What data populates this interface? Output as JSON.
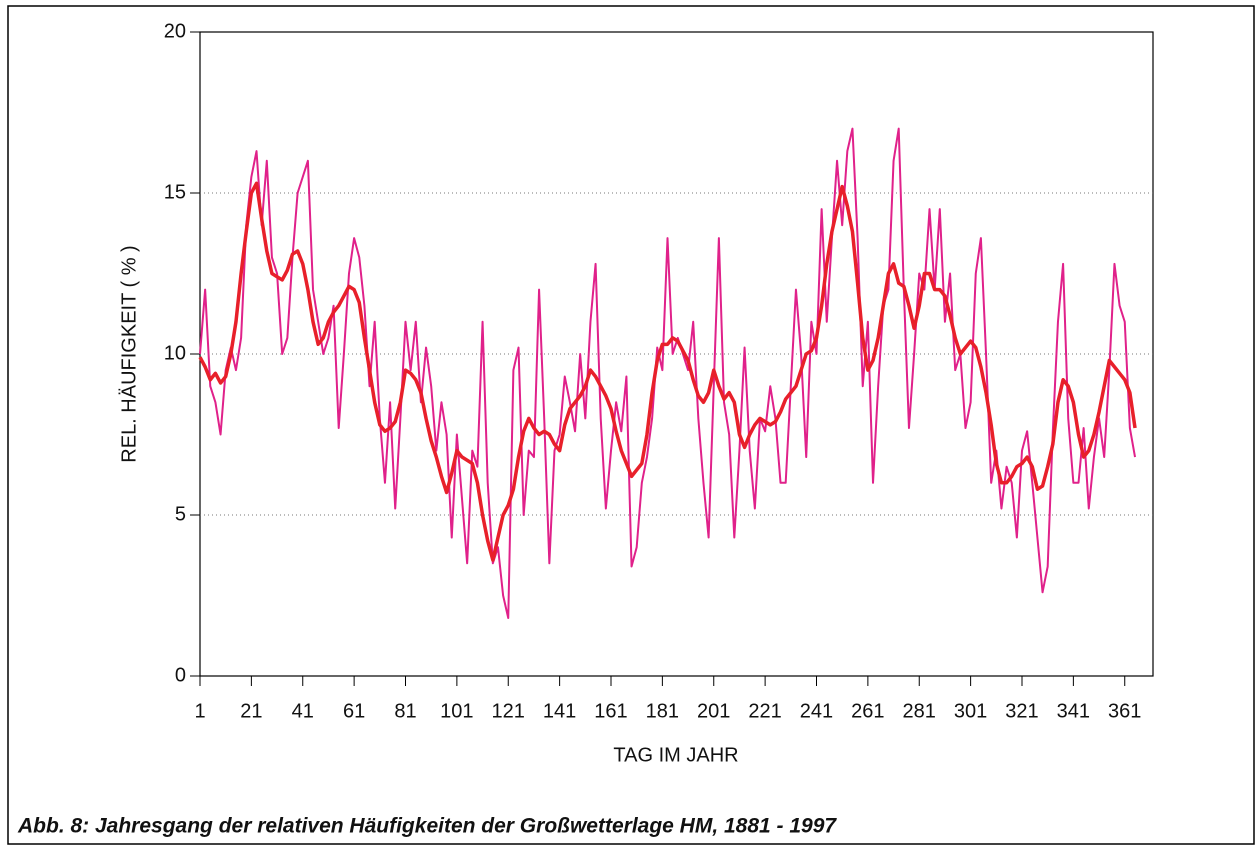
{
  "chart_data": {
    "type": "line",
    "title": "Abb. 8: Jahresgang der relativen Häufigkeiten der Großwetterlage HM, 1881 - 1997",
    "xlabel": "TAG IM JAHR",
    "ylabel": "REL. HÄUFIGKEIT ( % )",
    "x": [
      1,
      3,
      5,
      7,
      9,
      11,
      13,
      15,
      17,
      19,
      21,
      23,
      25,
      27,
      29,
      31,
      33,
      35,
      37,
      39,
      41,
      43,
      45,
      47,
      49,
      51,
      53,
      55,
      57,
      59,
      61,
      63,
      65,
      67,
      69,
      71,
      73,
      75,
      77,
      79,
      81,
      83,
      85,
      87,
      89,
      91,
      93,
      95,
      97,
      99,
      101,
      103,
      105,
      107,
      109,
      111,
      113,
      115,
      117,
      119,
      121,
      123,
      125,
      127,
      129,
      131,
      133,
      135,
      137,
      139,
      141,
      143,
      145,
      147,
      149,
      151,
      153,
      155,
      157,
      159,
      161,
      163,
      165,
      167,
      169,
      171,
      173,
      175,
      177,
      179,
      181,
      183,
      185,
      187,
      189,
      191,
      193,
      195,
      197,
      199,
      201,
      203,
      205,
      207,
      209,
      211,
      213,
      215,
      217,
      219,
      221,
      223,
      225,
      227,
      229,
      231,
      233,
      235,
      237,
      239,
      241,
      243,
      245,
      247,
      249,
      251,
      253,
      255,
      257,
      259,
      261,
      263,
      265,
      267,
      269,
      271,
      273,
      275,
      277,
      279,
      281,
      283,
      285,
      287,
      289,
      291,
      293,
      295,
      297,
      299,
      301,
      303,
      305,
      307,
      309,
      311,
      313,
      315,
      317,
      319,
      321,
      323,
      325,
      327,
      329,
      331,
      333,
      335,
      337,
      339,
      341,
      343,
      345,
      347,
      349,
      351,
      353,
      355,
      357,
      359,
      361,
      363,
      365
    ],
    "series": [
      {
        "color": "#e0218a",
        "width": 2,
        "values": [
          10,
          12,
          9,
          8.5,
          7.5,
          9.5,
          10.2,
          9.5,
          10.5,
          14,
          15.5,
          16.3,
          14,
          16,
          13,
          12.5,
          10,
          10.5,
          13,
          15,
          15.5,
          16,
          12,
          11,
          10,
          10.5,
          11.5,
          7.7,
          10,
          12.5,
          13.6,
          13,
          11.5,
          9,
          11,
          8,
          6,
          8.5,
          5.2,
          8,
          11,
          9.5,
          11,
          8.5,
          10.2,
          9,
          7,
          8.5,
          7.5,
          4.3,
          7.5,
          5.5,
          3.5,
          7,
          6.5,
          11,
          6,
          3.5,
          4,
          2.5,
          1.8,
          9.5,
          10.2,
          5,
          7,
          6.8,
          12,
          8,
          3.5,
          7,
          7.5,
          9.3,
          8.5,
          7.6,
          10,
          8,
          11,
          12.8,
          8,
          5.2,
          7,
          8.5,
          7.6,
          9.3,
          3.4,
          4,
          6,
          6.8,
          8,
          10.2,
          9.5,
          13.6,
          10,
          10.5,
          10,
          9.5,
          11,
          8,
          6,
          4.3,
          9,
          13.6,
          8.5,
          7.5,
          4.3,
          7,
          10.2,
          7,
          5.2,
          8,
          7.6,
          9,
          8,
          6,
          6,
          9,
          12,
          10,
          6.8,
          11,
          10,
          14.5,
          11,
          13.6,
          16,
          14,
          16.3,
          17,
          13.6,
          9,
          11,
          6,
          9,
          11.5,
          12,
          16,
          17,
          12,
          7.7,
          10,
          12.5,
          12,
          14.5,
          12,
          14.5,
          11,
          12.5,
          9.5,
          10,
          7.7,
          8.5,
          12.5,
          13.6,
          10,
          6,
          7,
          5.2,
          6.5,
          6,
          4.3,
          7,
          7.6,
          6,
          4.3,
          2.6,
          3.4,
          7.6,
          11,
          12.8,
          8,
          6,
          6,
          7.7,
          5.2,
          6.8,
          8,
          6.8,
          9.5,
          12.8,
          11.5,
          11,
          7.7,
          6.8
        ]
      },
      {
        "color": "#e8202a",
        "width": 3.5,
        "values": [
          9.9,
          9.6,
          9.2,
          9.4,
          9.1,
          9.3,
          10,
          11,
          12.5,
          13.8,
          15,
          15.3,
          14.2,
          13.2,
          12.5,
          12.4,
          12.3,
          12.6,
          13.1,
          13.2,
          12.8,
          12,
          11,
          10.3,
          10.5,
          11,
          11.3,
          11.5,
          11.8,
          12.1,
          12,
          11.6,
          10.5,
          9.5,
          8.5,
          7.8,
          7.6,
          7.7,
          7.9,
          8.5,
          9.5,
          9.4,
          9.2,
          8.8,
          8,
          7.3,
          6.8,
          6.2,
          5.7,
          6.3,
          7,
          6.8,
          6.7,
          6.6,
          6,
          5,
          4.2,
          3.6,
          4.3,
          5,
          5.3,
          5.8,
          6.8,
          7.6,
          8,
          7.7,
          7.5,
          7.6,
          7.5,
          7.2,
          7,
          7.8,
          8.3,
          8.5,
          8.7,
          9,
          9.5,
          9.3,
          9,
          8.7,
          8.3,
          7.6,
          7,
          6.6,
          6.2,
          6.4,
          6.6,
          7.5,
          8.8,
          9.8,
          10.3,
          10.3,
          10.5,
          10.4,
          10.1,
          9.8,
          9.2,
          8.7,
          8.5,
          8.8,
          9.5,
          9,
          8.6,
          8.8,
          8.5,
          7.5,
          7.1,
          7.5,
          7.8,
          8,
          7.9,
          7.8,
          7.9,
          8.2,
          8.6,
          8.8,
          9,
          9.5,
          10,
          10.1,
          10.5,
          11.5,
          12.8,
          13.8,
          14.5,
          15.2,
          14.6,
          13.8,
          12.2,
          10.5,
          9.5,
          9.8,
          10.5,
          11.5,
          12.5,
          12.8,
          12.2,
          12.1,
          11.5,
          10.8,
          11.5,
          12.5,
          12.5,
          12,
          12,
          11.8,
          11.2,
          10.5,
          10,
          10.2,
          10.4,
          10.2,
          9.6,
          8.8,
          7.8,
          6.6,
          6,
          6,
          6.2,
          6.5,
          6.6,
          6.8,
          6.5,
          5.8,
          5.9,
          6.5,
          7.2,
          8.5,
          9.2,
          9,
          8.5,
          7.5,
          6.8,
          7,
          7.5,
          8.2,
          9,
          9.8,
          9.6,
          9.4,
          9.2,
          8.8,
          7.7
        ]
      }
    ],
    "xlim": [
      1,
      372
    ],
    "xticks": [
      1,
      21,
      41,
      61,
      81,
      101,
      121,
      141,
      161,
      181,
      201,
      221,
      241,
      261,
      281,
      301,
      321,
      341,
      361
    ],
    "ylim": [
      0,
      20
    ],
    "yticks": [
      0,
      5,
      10,
      15,
      20
    ],
    "grid": true
  }
}
